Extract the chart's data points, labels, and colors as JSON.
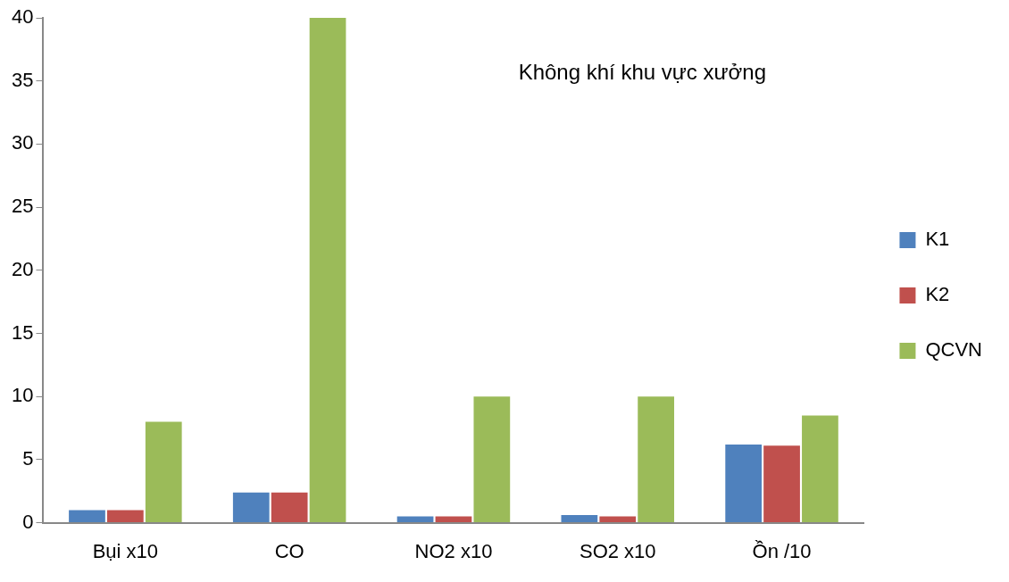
{
  "chart_data": {
    "type": "bar",
    "title": "Không khí khu vực xưởng",
    "categories": [
      "Bụi x10",
      "CO",
      "NO2 x10",
      "SO2 x10",
      "Ồn /10"
    ],
    "series": [
      {
        "name": "K1",
        "color": "#4f81bd",
        "values": [
          1.0,
          2.4,
          0.5,
          0.6,
          6.2
        ]
      },
      {
        "name": "K2",
        "color": "#c0504d",
        "values": [
          1.0,
          2.4,
          0.5,
          0.5,
          6.1
        ]
      },
      {
        "name": "QCVN",
        "color": "#9bbb59",
        "values": [
          8,
          40,
          10,
          10,
          8.5
        ]
      }
    ],
    "ylim": [
      0,
      40
    ],
    "yticks": [
      0,
      5,
      10,
      15,
      20,
      25,
      30,
      35,
      40
    ],
    "grid": false,
    "legend": "right"
  }
}
